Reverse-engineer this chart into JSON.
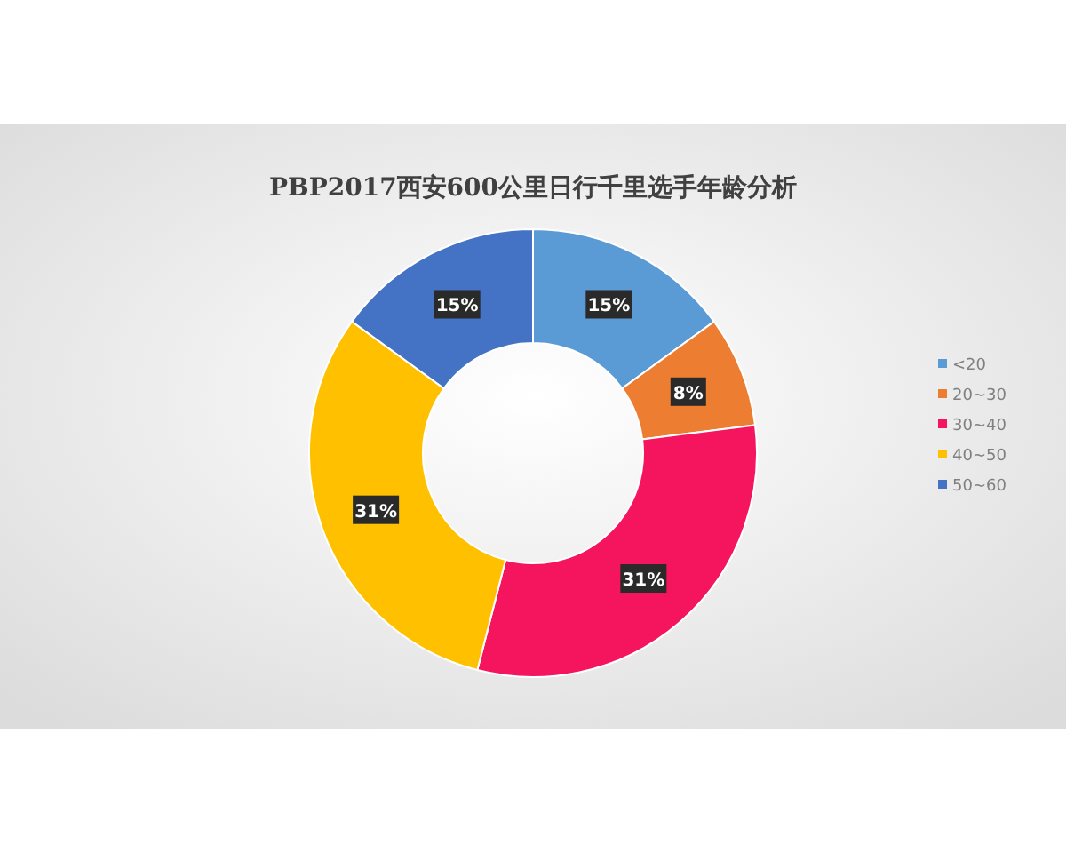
{
  "chart_data": {
    "type": "donut",
    "title": "PBP2017西安600公里日行千里选手年龄分析",
    "categories": [
      "<20",
      "20~30",
      "30~40",
      "40~50",
      "50~60"
    ],
    "values": [
      15,
      8,
      31,
      31,
      15
    ],
    "colors": [
      "#5b9bd5",
      "#ed7d31",
      "#f5155e",
      "#ffc000",
      "#4472c4"
    ],
    "value_labels": [
      "15%",
      "8%",
      "31%",
      "31%",
      "15%"
    ],
    "legend": "right"
  }
}
